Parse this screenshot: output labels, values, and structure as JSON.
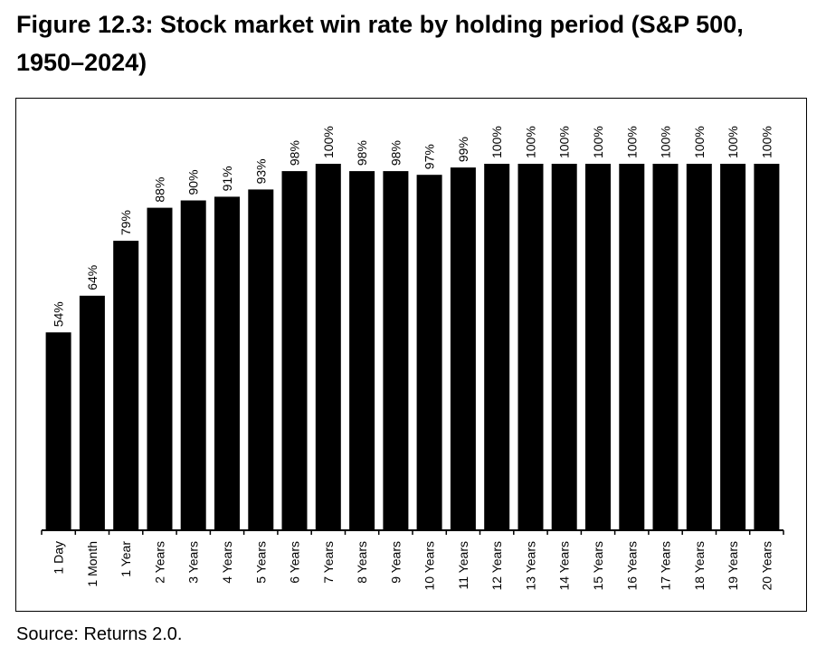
{
  "header": {
    "title": "Figure 12.3: Stock market win rate by holding period (S&P 500, 1950–2024)"
  },
  "footer": {
    "source": "Source: Returns 2.0."
  },
  "chart_data": {
    "type": "bar",
    "title": "Figure 12.3: Stock market win rate by holding period (S&P 500, 1950–2024)",
    "xlabel": "",
    "ylabel": "",
    "ylim": [
      0,
      100
    ],
    "grid": false,
    "bar_color": "#000000",
    "categories": [
      "1 Day",
      "1 Month",
      "1 Year",
      "2 Years",
      "3 Years",
      "4 Years",
      "5 Years",
      "6 Years",
      "7 Years",
      "8 Years",
      "9 Years",
      "10 Years",
      "11 Years",
      "12 Years",
      "13 Years",
      "14 Years",
      "15 Years",
      "16 Years",
      "17 Years",
      "18 Years",
      "19 Years",
      "20 Years"
    ],
    "values": [
      54,
      64,
      79,
      88,
      90,
      91,
      93,
      98,
      100,
      98,
      98,
      97,
      99,
      100,
      100,
      100,
      100,
      100,
      100,
      100,
      100,
      100
    ],
    "value_labels": [
      "54%",
      "64%",
      "79%",
      "88%",
      "90%",
      "91%",
      "93%",
      "98%",
      "100%",
      "98%",
      "98%",
      "97%",
      "99%",
      "100%",
      "100%",
      "100%",
      "100%",
      "100%",
      "100%",
      "100%",
      "100%",
      "100%"
    ]
  }
}
